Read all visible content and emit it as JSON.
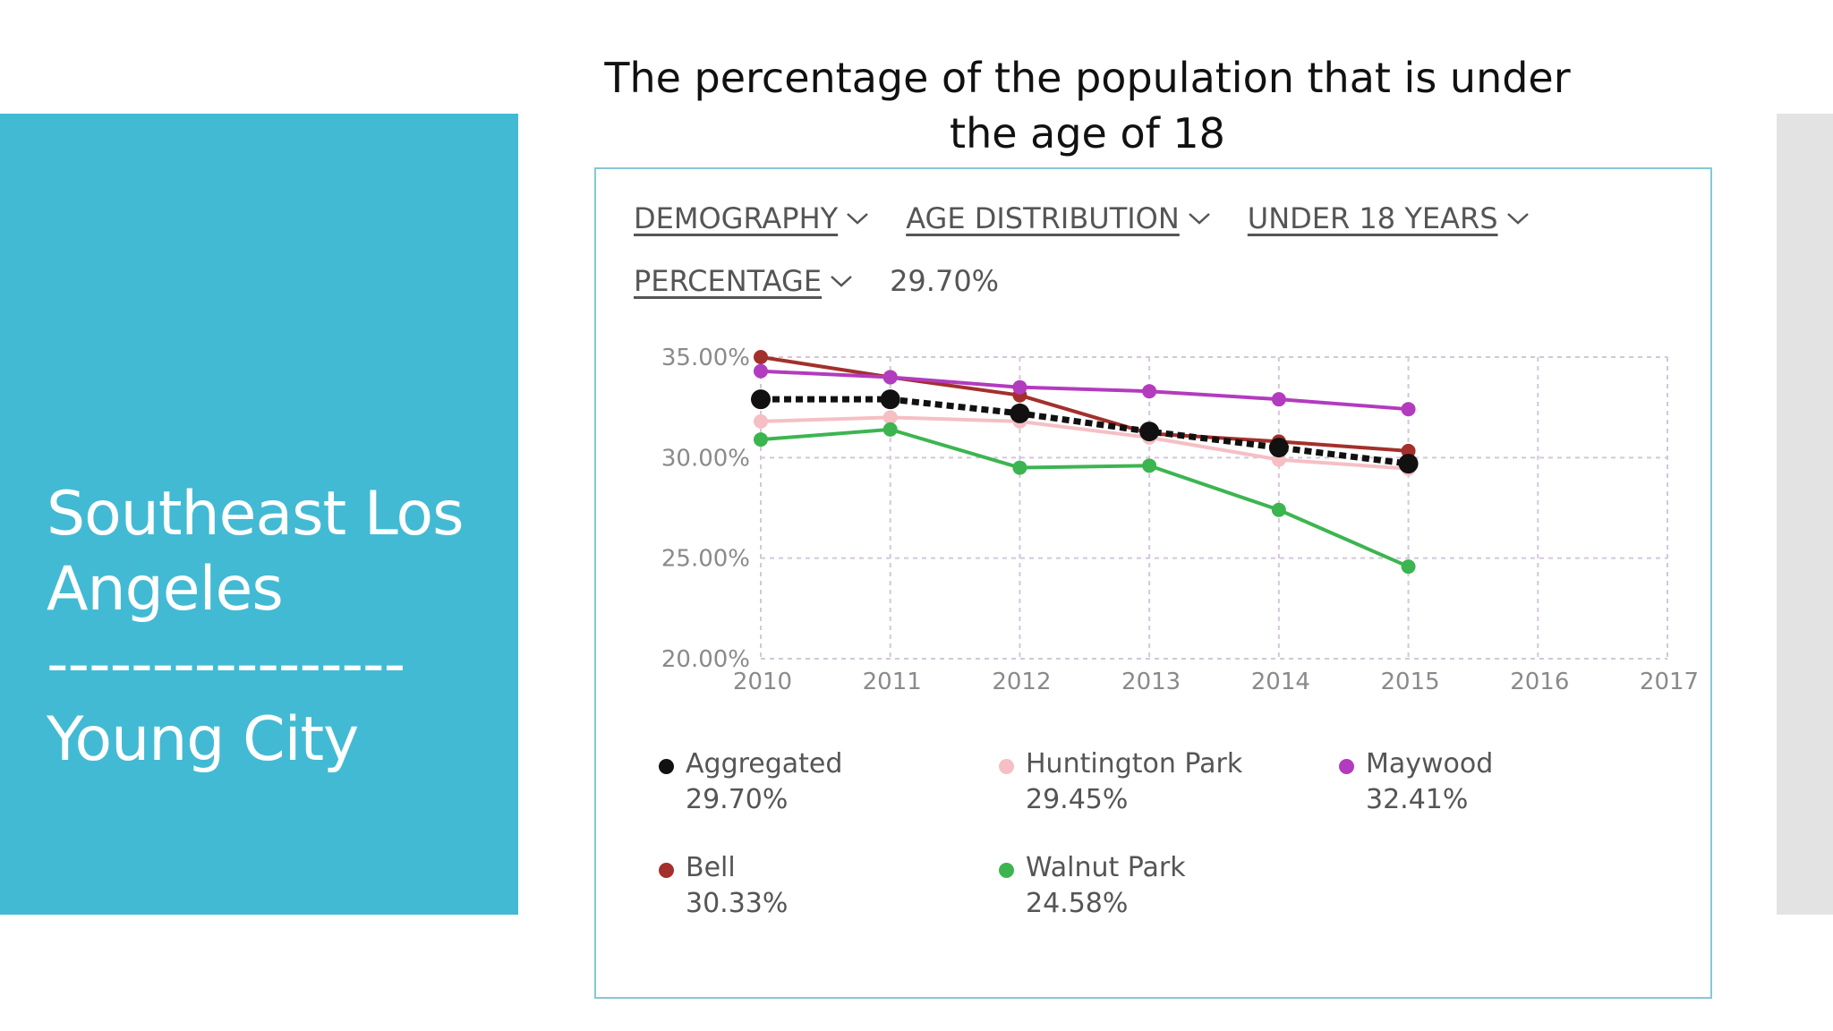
{
  "slide": {
    "title_line1": "Southeast Los",
    "title_line2": "Angeles",
    "divider": "-----------------",
    "subtitle": "Young City",
    "panel_color": "#42bad4"
  },
  "heading": {
    "line1": "The percentage of the population that is under",
    "line2": "the age of 18"
  },
  "filters": {
    "demography": "DEMOGRAPHY",
    "age_distribution": "AGE DISTRIBUTION",
    "under_18": "UNDER 18 YEARS",
    "percentage": "PERCENTAGE",
    "current_value": "29.70%",
    "dropdown_icon": "chevron-down-icon"
  },
  "chart_data": {
    "type": "line",
    "x": [
      2010,
      2011,
      2012,
      2013,
      2014,
      2015
    ],
    "x_ticks": [
      "2010",
      "2011",
      "2012",
      "2013",
      "2014",
      "2015",
      "2016",
      "2017"
    ],
    "xlim": [
      2010,
      2017
    ],
    "y_ticks": [
      "20.00%",
      "25.00%",
      "30.00%",
      "35.00%"
    ],
    "ylim": [
      20,
      35
    ],
    "grid": true,
    "legend_position": "bottom",
    "series": [
      {
        "name": "Bell",
        "color": "#a3302c",
        "values": [
          35.0,
          34.0,
          33.1,
          31.2,
          30.8,
          30.33
        ],
        "legend_value": "30.33%"
      },
      {
        "name": "Maywood",
        "color": "#b33bbf",
        "values": [
          34.3,
          34.0,
          33.5,
          33.3,
          32.9,
          32.41
        ],
        "legend_value": "32.41%"
      },
      {
        "name": "Huntington Park",
        "color": "#f5bfc4",
        "values": [
          31.8,
          32.0,
          31.8,
          31.0,
          29.9,
          29.45
        ],
        "legend_value": "29.45%"
      },
      {
        "name": "Walnut Park",
        "color": "#3cb550",
        "values": [
          30.9,
          31.4,
          29.5,
          29.6,
          27.4,
          24.58
        ],
        "legend_value": "24.58%"
      },
      {
        "name": "Aggregated",
        "color": "#111111",
        "dashed": true,
        "values": [
          32.9,
          32.9,
          32.2,
          31.3,
          30.5,
          29.7
        ],
        "legend_value": "29.70%"
      }
    ],
    "legend_order": [
      "Aggregated",
      "Huntington Park",
      "Maywood",
      "Bell",
      "Walnut Park"
    ]
  }
}
